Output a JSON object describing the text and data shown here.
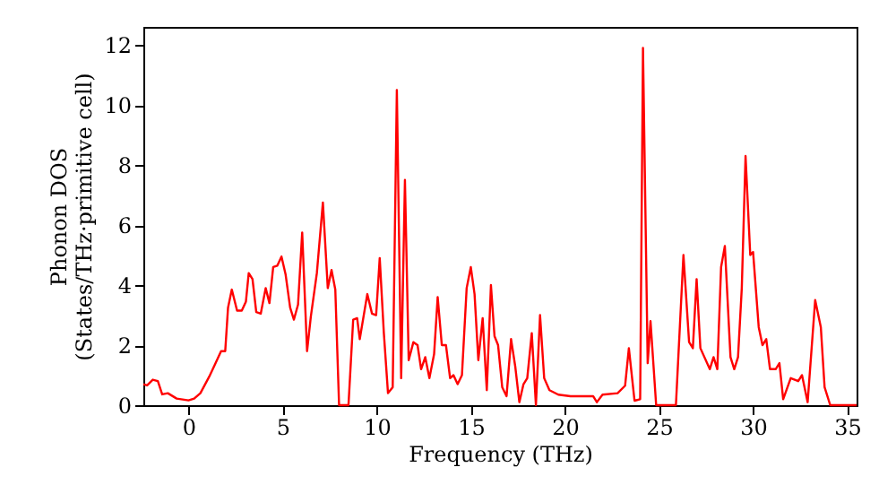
{
  "chart_data": {
    "type": "line",
    "xlabel": "Frequency (THz)",
    "ylabel": "Phonon DOS\n(States/THz·primitive cell)",
    "xlim": [
      -2.4,
      35.5
    ],
    "ylim": [
      0,
      12.6
    ],
    "xticks": [
      0,
      5,
      10,
      15,
      20,
      25,
      30,
      35
    ],
    "yticks": [
      0,
      2,
      4,
      6,
      8,
      10,
      12
    ],
    "grid": false,
    "marker": "none",
    "line_style": "solid",
    "series": [
      {
        "color": "#ff0000",
        "x": [
          -2.4,
          -2.2,
          -1.9,
          -1.63,
          -1.4,
          -1.1,
          -0.63,
          0,
          0.3,
          0.63,
          1.1,
          1.4,
          1.73,
          1.95,
          2.1,
          2.3,
          2.58,
          2.83,
          3.05,
          3.2,
          3.4,
          3.6,
          3.84,
          4.1,
          4.3,
          4.5,
          4.72,
          4.94,
          5.16,
          5.4,
          5.6,
          5.82,
          6.04,
          6.3,
          6.5,
          6.82,
          7.14,
          7.4,
          7.6,
          7.8,
          8.0,
          8.5,
          8.75,
          8.96,
          9.1,
          9.5,
          9.75,
          9.97,
          10.16,
          10.38,
          10.6,
          10.85,
          11.07,
          11.3,
          11.5,
          11.7,
          11.95,
          12.17,
          12.36,
          12.58,
          12.8,
          13.05,
          13.24,
          13.46,
          13.68,
          13.9,
          14.08,
          14.3,
          14.53,
          14.78,
          15.0,
          15.2,
          15.4,
          15.63,
          15.85,
          16.07,
          16.26,
          16.45,
          16.67,
          16.9,
          17.14,
          17.36,
          17.58,
          17.8,
          18.0,
          18.24,
          18.46,
          18.68,
          18.9,
          19.18,
          19.65,
          20.3,
          21.5,
          21.7,
          22.0,
          22.8,
          23.2,
          23.4,
          23.7,
          24.0,
          24.15,
          24.4,
          24.55,
          24.85,
          25.9,
          26.3,
          26.6,
          26.8,
          27.0,
          27.2,
          27.7,
          27.9,
          28.1,
          28.3,
          28.5,
          28.8,
          29.0,
          29.2,
          29.4,
          29.6,
          29.85,
          30.0,
          30.3,
          30.5,
          30.7,
          30.9,
          31.2,
          31.4,
          31.6,
          32.0,
          32.4,
          32.6,
          32.9,
          33.3,
          33.6,
          33.8,
          34.1,
          35.5
        ],
        "values": [
          0.7,
          0.66,
          0.85,
          0.8,
          0.36,
          0.4,
          0.22,
          0.16,
          0.22,
          0.4,
          0.95,
          1.35,
          1.8,
          1.8,
          3.25,
          3.85,
          3.15,
          3.15,
          3.45,
          4.4,
          4.2,
          3.1,
          3.05,
          3.9,
          3.4,
          4.6,
          4.65,
          4.95,
          4.35,
          3.25,
          2.85,
          3.35,
          5.75,
          1.8,
          2.95,
          4.4,
          6.75,
          3.9,
          4.5,
          3.85,
          0.0,
          0.0,
          2.85,
          2.9,
          2.2,
          3.7,
          3.05,
          3.0,
          4.9,
          2.4,
          0.4,
          0.6,
          10.5,
          0.9,
          7.5,
          1.5,
          2.1,
          2.0,
          1.2,
          1.6,
          0.9,
          1.7,
          3.6,
          2.0,
          2.0,
          0.9,
          1.0,
          0.7,
          1.0,
          3.9,
          4.6,
          3.7,
          1.5,
          2.9,
          0.5,
          4.0,
          2.3,
          2.0,
          0.6,
          0.3,
          2.2,
          1.3,
          0.1,
          0.7,
          0.9,
          2.4,
          0.0,
          3.0,
          0.9,
          0.5,
          0.35,
          0.3,
          0.3,
          0.1,
          0.35,
          0.4,
          0.65,
          1.9,
          0.15,
          0.2,
          11.9,
          1.4,
          2.8,
          0.0,
          0.0,
          5.0,
          2.1,
          1.9,
          4.2,
          1.9,
          1.2,
          1.6,
          1.2,
          4.6,
          5.3,
          1.6,
          1.2,
          1.6,
          3.9,
          8.3,
          5.0,
          5.1,
          2.6,
          2.0,
          2.2,
          1.2,
          1.2,
          1.4,
          0.2,
          0.9,
          0.8,
          1.0,
          0.1,
          3.5,
          2.6,
          0.6,
          0.0,
          0.0
        ]
      }
    ]
  }
}
